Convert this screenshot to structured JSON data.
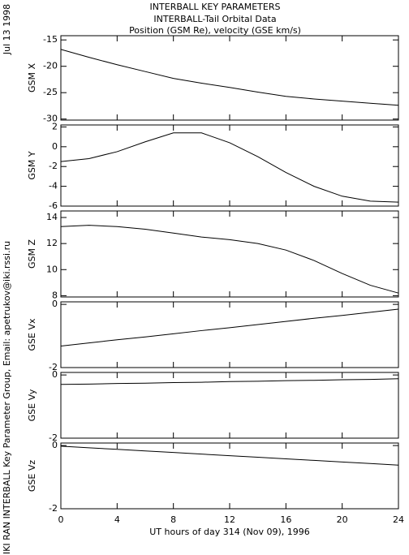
{
  "header": {
    "title_lines": [
      "INTERBALL KEY PARAMETERS",
      "INTERBALL-Tail Orbital Data",
      "Position (GSM Re), velocity (GSE km/s)"
    ],
    "date": "Jul 13 1998",
    "credit": "IKI RAN INTERBALL Key Parameter Group, Email: apetrukov@iki.rssi.ru"
  },
  "chart_data": [
    {
      "type": "line",
      "ylabel": "GSM X",
      "x": [
        0,
        2,
        4,
        6,
        8,
        10,
        12,
        14,
        16,
        18,
        20,
        22,
        24
      ],
      "values": [
        -16.8,
        -18.3,
        -19.7,
        -21.0,
        -22.3,
        -23.2,
        -24.0,
        -24.9,
        -25.7,
        -26.2,
        -26.6,
        -27.0,
        -27.4
      ],
      "xlim": [
        0,
        24
      ],
      "ylim": [
        -30.2,
        -14.2
      ],
      "yticks": [
        -30,
        -25,
        -20,
        -15
      ],
      "color": "#000000"
    },
    {
      "type": "line",
      "ylabel": "GSM Y",
      "x": [
        0,
        2,
        4,
        6,
        8,
        10,
        12,
        14,
        16,
        18,
        20,
        22,
        24
      ],
      "values": [
        -1.5,
        -1.2,
        -0.5,
        0.5,
        1.4,
        1.4,
        0.4,
        -1.0,
        -2.6,
        -4.0,
        -5.0,
        -5.5,
        -5.6
      ],
      "xlim": [
        0,
        24
      ],
      "ylim": [
        -6,
        2.2
      ],
      "yticks": [
        -6,
        -4,
        -2,
        0,
        2
      ],
      "color": "#000000"
    },
    {
      "type": "line",
      "ylabel": "GSM Z",
      "x": [
        0,
        2,
        4,
        6,
        8,
        10,
        12,
        14,
        16,
        18,
        20,
        22,
        24
      ],
      "values": [
        13.3,
        13.4,
        13.3,
        13.1,
        12.8,
        12.5,
        12.3,
        12.0,
        11.5,
        10.7,
        9.7,
        8.8,
        8.2
      ],
      "xlim": [
        0,
        24
      ],
      "ylim": [
        7.9,
        14.5
      ],
      "yticks": [
        8,
        10,
        12,
        14
      ],
      "color": "#000000"
    },
    {
      "type": "line",
      "ylabel": "GSE Vx",
      "x": [
        0,
        2,
        4,
        6,
        8,
        10,
        12,
        14,
        16,
        18,
        20,
        22,
        24
      ],
      "values": [
        -1.32,
        -1.22,
        -1.12,
        -1.03,
        -0.93,
        -0.83,
        -0.74,
        -0.64,
        -0.54,
        -0.44,
        -0.35,
        -0.25,
        -0.15
      ],
      "xlim": [
        0,
        24
      ],
      "ylim": [
        -2,
        0.08
      ],
      "yticks": [
        -2,
        0
      ],
      "color": "#000000"
    },
    {
      "type": "line",
      "ylabel": "GSE Vy",
      "x": [
        0,
        2,
        4,
        6,
        8,
        10,
        12,
        14,
        16,
        18,
        20,
        22,
        24
      ],
      "values": [
        -0.3,
        -0.29,
        -0.27,
        -0.26,
        -0.24,
        -0.23,
        -0.21,
        -0.2,
        -0.18,
        -0.17,
        -0.15,
        -0.14,
        -0.12
      ],
      "xlim": [
        0,
        24
      ],
      "ylim": [
        -2,
        0.08
      ],
      "yticks": [
        -2,
        0
      ],
      "color": "#000000"
    },
    {
      "type": "line",
      "ylabel": "GSE Vz",
      "x": [
        0,
        2,
        4,
        6,
        8,
        10,
        12,
        14,
        16,
        18,
        20,
        22,
        24
      ],
      "values": [
        -0.02,
        -0.07,
        -0.12,
        -0.17,
        -0.22,
        -0.27,
        -0.32,
        -0.37,
        -0.42,
        -0.47,
        -0.52,
        -0.57,
        -0.62
      ],
      "xlim": [
        0,
        24
      ],
      "ylim": [
        -2,
        0.08
      ],
      "yticks": [
        -2,
        0
      ],
      "color": "#000000",
      "xticks": [
        0,
        4,
        8,
        12,
        16,
        20,
        24
      ],
      "xlabel": "UT hours of day 314 (Nov 09), 1996"
    }
  ]
}
